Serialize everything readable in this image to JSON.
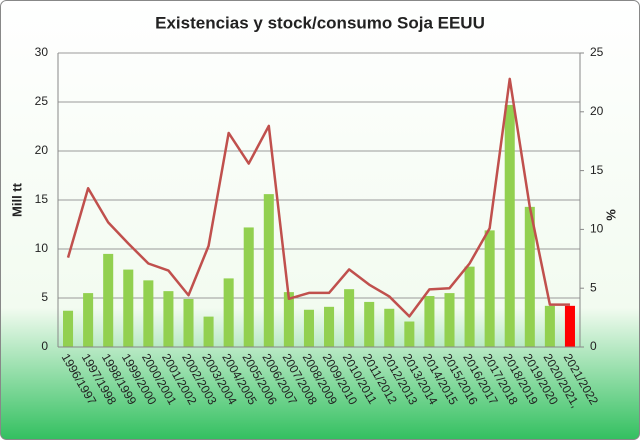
{
  "chart_data": {
    "type": "bar-line",
    "title": "Existencias y stock/consumo Soja EEUU",
    "y_label": "Mill tt",
    "y2_label": "%",
    "categories": [
      "1996/1997",
      "1997/1998",
      "1998/1999",
      "1999/2000",
      "2000/2001",
      "2001/2002",
      "2002/2003",
      "2003/2004",
      "2004/2005",
      "2005/2006",
      "2006/2007",
      "2007/2008",
      "2008/2009",
      "2009/2010",
      "2010/2011",
      "2011/2012",
      "2012/2013",
      "2013/2014",
      "2014/2015",
      "2015/2016",
      "2016/2017",
      "2017/2018",
      "2018/2019",
      "2019/2020",
      "2020/2021,",
      "2021/2022"
    ],
    "series": [
      {
        "type": "bar",
        "color": "#92d050",
        "colors": [
          "#92d050",
          "#92d050",
          "#92d050",
          "#92d050",
          "#92d050",
          "#92d050",
          "#92d050",
          "#92d050",
          "#92d050",
          "#92d050",
          "#92d050",
          "#92d050",
          "#92d050",
          "#92d050",
          "#92d050",
          "#92d050",
          "#92d050",
          "#92d050",
          "#92d050",
          "#92d050",
          "#92d050",
          "#92d050",
          "#92d050",
          "#92d050",
          "#92d050",
          "#ff0000"
        ],
        "values": [
          3.7,
          5.5,
          9.5,
          7.9,
          6.8,
          5.7,
          4.9,
          3.1,
          7.0,
          12.2,
          15.6,
          5.6,
          3.8,
          4.1,
          5.9,
          4.6,
          3.9,
          2.6,
          5.2,
          5.5,
          8.2,
          11.9,
          24.7,
          14.3,
          4.2,
          4.2
        ]
      },
      {
        "type": "line",
        "axis": "y2",
        "color": "#c0504d",
        "values": [
          7.6,
          13.5,
          10.6,
          8.8,
          7.1,
          6.5,
          4.4,
          8.6,
          18.2,
          15.6,
          18.8,
          4.1,
          4.6,
          4.6,
          6.6,
          5.3,
          4.3,
          2.6,
          4.9,
          5.0,
          7.1,
          10.1,
          22.8,
          11.9,
          3.6,
          3.6
        ]
      }
    ],
    "ylim": [
      0,
      30
    ],
    "yticks": [
      0,
      5,
      10,
      15,
      20,
      25,
      30
    ],
    "y2lim": [
      0,
      25
    ],
    "y2ticks": [
      0,
      5,
      10,
      15,
      20,
      25
    ],
    "grid": true
  }
}
